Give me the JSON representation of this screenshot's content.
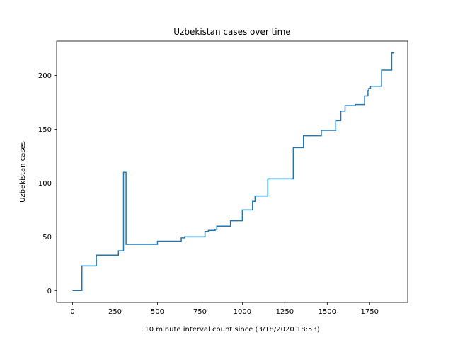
{
  "chart_data": {
    "type": "line",
    "title": "Uzbekistan cases over time",
    "xlabel": "10 minute interval count since (3/18/2020 18:53)",
    "ylabel": "Uzbekistan cases",
    "xlim": [
      -94,
      1974
    ],
    "ylim": [
      -11,
      232
    ],
    "xticks": [
      0,
      250,
      500,
      750,
      1000,
      1250,
      1500,
      1750
    ],
    "yticks": [
      0,
      50,
      100,
      150,
      200
    ],
    "grid": false,
    "line_color": "#1f77b4",
    "step": "post",
    "series": [
      {
        "x": [
          0,
          55,
          140,
          270,
          300,
          315,
          500,
          640,
          660,
          780,
          800,
          840,
          850,
          930,
          1000,
          1060,
          1075,
          1150,
          1300,
          1360,
          1465,
          1550,
          1580,
          1605,
          1665,
          1720,
          1740,
          1745,
          1755,
          1820,
          1880,
          1895
        ],
        "values": [
          0,
          23,
          33,
          37,
          110,
          43,
          46,
          49,
          50,
          55,
          56,
          57,
          60,
          65,
          75,
          83,
          88,
          104,
          133,
          144,
          149,
          158,
          167,
          172,
          173,
          181,
          186,
          188,
          190,
          205,
          221,
          221
        ]
      }
    ]
  }
}
